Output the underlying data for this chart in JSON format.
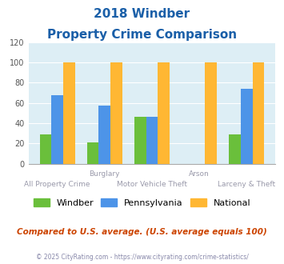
{
  "title_line1": "2018 Windber",
  "title_line2": "Property Crime Comparison",
  "categories": [
    "All Property Crime",
    "Burglary",
    "Motor Vehicle Theft",
    "Arson",
    "Larceny & Theft"
  ],
  "windber": [
    29,
    21,
    46,
    0,
    29
  ],
  "pennsylvania": [
    68,
    57,
    46,
    0,
    74
  ],
  "national": [
    100,
    100,
    100,
    100,
    100
  ],
  "colors": {
    "windber": "#6abf3b",
    "pennsylvania": "#4d94e8",
    "national": "#ffb733"
  },
  "ylim": [
    0,
    120
  ],
  "yticks": [
    0,
    20,
    40,
    60,
    80,
    100,
    120
  ],
  "background_color": "#ddeef5",
  "title_color": "#1a5fa8",
  "xlabel_color": "#9999aa",
  "legend_labels": [
    "Windber",
    "Pennsylvania",
    "National"
  ],
  "footnote1": "Compared to U.S. average. (U.S. average equals 100)",
  "footnote2": "© 2025 CityRating.com - https://www.cityrating.com/crime-statistics/",
  "footnote1_color": "#cc4400",
  "footnote2_color": "#8888aa"
}
